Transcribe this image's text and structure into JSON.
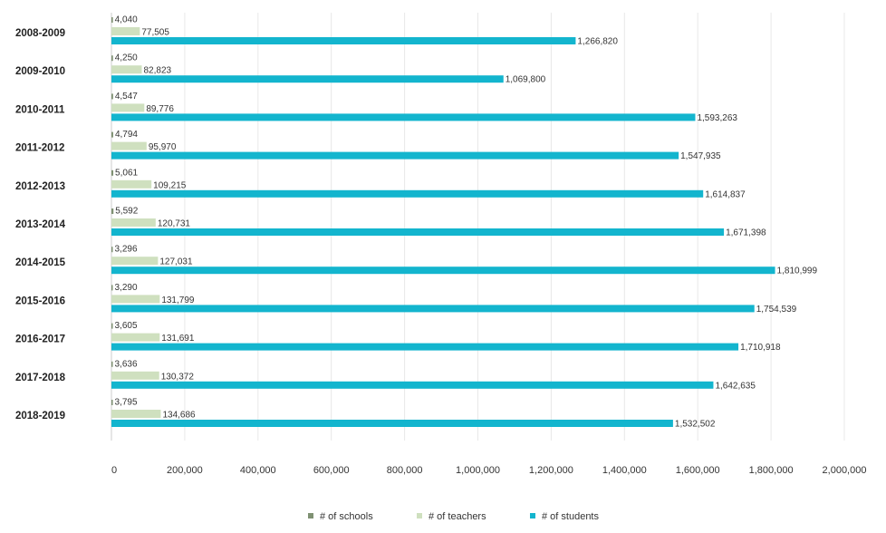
{
  "chart_data": {
    "type": "bar",
    "orientation": "horizontal",
    "categories": [
      "2008-2009",
      "2009-2010",
      "2010-2011",
      "2011-2012",
      "2012-2013",
      "2013-2014",
      "2014-2015",
      "2015-2016",
      "2016-2017",
      "2017-2018",
      "2018-2019"
    ],
    "series": [
      {
        "name": "# of schools",
        "color": "#7f9173",
        "values": [
          4040,
          4250,
          4547,
          4794,
          5061,
          5592,
          3296,
          3290,
          3605,
          3636,
          3795
        ],
        "labels": [
          "4,040",
          "4,250",
          "4,547",
          "4,794",
          "5,061",
          "5,592",
          "3,296",
          "3,290",
          "3,605",
          "3,636",
          "3,795"
        ]
      },
      {
        "name": "# of teachers",
        "color": "#cfe0bf",
        "values": [
          77505,
          82823,
          89776,
          95970,
          109215,
          120731,
          127031,
          131799,
          131691,
          130372,
          134686
        ],
        "labels": [
          "77,505",
          "82,823",
          "89,776",
          "95,970",
          "109,215",
          "120,731",
          "127,031",
          "131,799",
          "131,691",
          "130,372",
          "134,686"
        ]
      },
      {
        "name": "# of students",
        "color": "#13b5ce",
        "values": [
          1266820,
          1069800,
          1593263,
          1547935,
          1614837,
          1671398,
          1810999,
          1754539,
          1710918,
          1642635,
          1532502
        ],
        "labels": [
          "1,266,820",
          "1,069,800",
          "1,593,263",
          "1,547,935",
          "1,614,837",
          "1,671,398",
          "1,810,999",
          "1,754,539",
          "1,710,918",
          "1,642,635",
          "1,532,502"
        ]
      }
    ],
    "xlim": [
      0,
      2000000
    ],
    "xticks": [
      0,
      200000,
      400000,
      600000,
      800000,
      1000000,
      1200000,
      1400000,
      1600000,
      1800000,
      2000000
    ],
    "xtick_labels": [
      "0",
      "200,000",
      "400,000",
      "600,000",
      "800,000",
      "1,000,000",
      "1,200,000",
      "1,400,000",
      "1,600,000",
      "1,800,000",
      "2,000,000"
    ],
    "grid": true,
    "legend_position": "bottom"
  }
}
